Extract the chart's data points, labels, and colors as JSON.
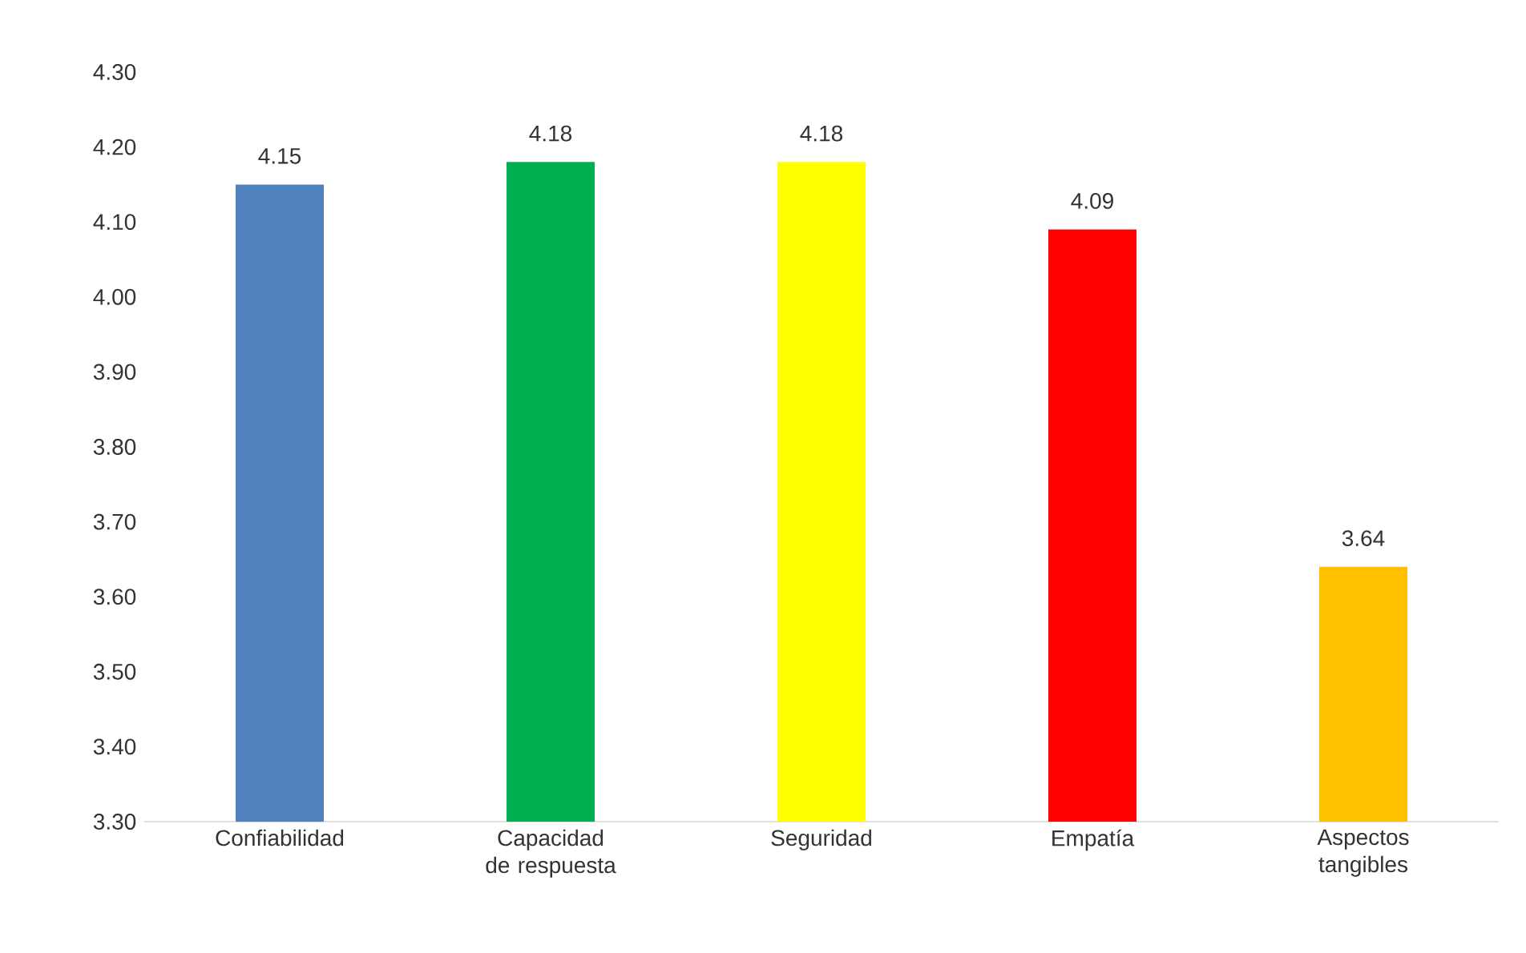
{
  "chart_data": {
    "type": "bar",
    "categories": [
      "Confiabilidad",
      "Capacidad de respuesta",
      "Seguridad",
      "Empatía",
      "Aspectos tangibles"
    ],
    "values": [
      4.15,
      4.18,
      4.18,
      4.09,
      3.64
    ],
    "colors": [
      "#4f81bd",
      "#00b050",
      "#ffff00",
      "#ff0000",
      "#ffc000"
    ],
    "ylim": [
      3.3,
      4.3
    ],
    "yticks": [
      {
        "value": 3.3,
        "label": "3.30"
      },
      {
        "value": 3.4,
        "label": "3.40"
      },
      {
        "value": 3.5,
        "label": "3.50"
      },
      {
        "value": 3.6,
        "label": "3.60"
      },
      {
        "value": 3.7,
        "label": "3.70"
      },
      {
        "value": 3.8,
        "label": "3.80"
      },
      {
        "value": 3.9,
        "label": "3.90"
      },
      {
        "value": 4.0,
        "label": "4.00"
      },
      {
        "value": 4.1,
        "label": "4.10"
      },
      {
        "value": 4.2,
        "label": "4.20"
      },
      {
        "value": 4.3,
        "label": "4.30"
      }
    ],
    "data_labels": true,
    "grid": false
  }
}
